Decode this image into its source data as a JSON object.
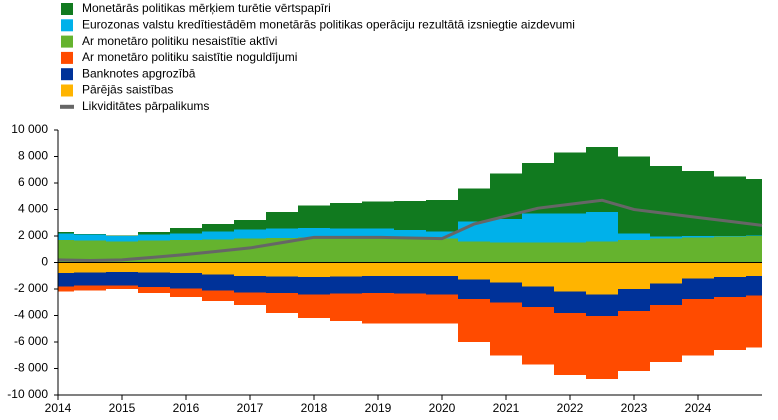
{
  "chart_data": {
    "type": "stacked_bar",
    "x": [
      2014,
      2014.5,
      2015,
      2015.5,
      2016,
      2016.5,
      2017,
      2017.5,
      2018,
      2018.5,
      2019,
      2019.5,
      2020,
      2020.5,
      2021,
      2021.5,
      2022,
      2022.5,
      2023,
      2023.5,
      2024,
      2024.5,
      2025
    ],
    "xlim": [
      2014,
      2025
    ],
    "xticks": [
      2014,
      2015,
      2016,
      2017,
      2018,
      2019,
      2020,
      2021,
      2022,
      2023,
      2024
    ],
    "ylim": [
      -10000,
      10000
    ],
    "yticks": [
      {
        "value": -10000,
        "label": "-10 000"
      },
      {
        "value": -8000,
        "label": "-8 000"
      },
      {
        "value": -6000,
        "label": "-6 000"
      },
      {
        "value": -4000,
        "label": "-4 000"
      },
      {
        "value": -2000,
        "label": "-2 000"
      },
      0,
      {
        "value": 2000,
        "label": "2 000"
      },
      {
        "value": 4000,
        "label": "4 000"
      },
      {
        "value": 6000,
        "label": "6 000"
      },
      {
        "value": 8000,
        "label": "8 000"
      },
      {
        "value": 10000,
        "label": "10 000"
      }
    ],
    "series": [
      {
        "name": "Monetārās politikas mērķiem turētie vērtspapīri",
        "color": "#117a1f",
        "values": [
          100,
          50,
          50,
          200,
          400,
          550,
          700,
          1250,
          1700,
          1950,
          2050,
          2200,
          2350,
          2500,
          3400,
          3800,
          4600,
          4900,
          5800,
          5350,
          4900,
          4500,
          4270
        ]
      },
      {
        "name": "Eurozonas valstu kredītiestādēm monetārās politikas operāciju rezultātā izsniegtie aizdevumi",
        "color": "#00b1ea",
        "values": [
          500,
          450,
          400,
          450,
          500,
          600,
          700,
          700,
          700,
          650,
          650,
          600,
          550,
          1500,
          1800,
          2200,
          2200,
          2200,
          500,
          150,
          100,
          50,
          30
        ]
      },
      {
        "name": "Ar monetāro politiku nesaistītie aktīvi",
        "color": "#65b32e",
        "values": [
          1700,
          1650,
          1600,
          1650,
          1700,
          1750,
          1800,
          1850,
          1900,
          1900,
          1900,
          1850,
          1800,
          1600,
          1500,
          1500,
          1500,
          1600,
          1700,
          1800,
          1900,
          1950,
          2000
        ]
      },
      {
        "name": "Ar monetāro politiku saistītie noguldījumi",
        "color": "#ff4b00",
        "values": [
          -400,
          -350,
          -250,
          -450,
          -650,
          -800,
          -950,
          -1500,
          -1800,
          -2050,
          -2300,
          -2250,
          -2200,
          -3250,
          -4000,
          -4350,
          -4700,
          -4750,
          -4550,
          -4300,
          -4250,
          -4000,
          -3900
        ]
      },
      {
        "name": "Banknotes apgrozībā",
        "color": "#003299",
        "values": [
          -1000,
          -1000,
          -1050,
          -1100,
          -1150,
          -1200,
          -1250,
          -1250,
          -1300,
          -1300,
          -1300,
          -1350,
          -1400,
          -1450,
          -1500,
          -1550,
          -1600,
          -1650,
          -1650,
          -1600,
          -1550,
          -1500,
          -1500
        ]
      },
      {
        "name": "Pārējās saistības",
        "color": "#ffb400",
        "values": [
          -800,
          -750,
          -700,
          -750,
          -800,
          -900,
          -1000,
          -1050,
          -1100,
          -1050,
          -1000,
          -1000,
          -1000,
          -1300,
          -1500,
          -1800,
          -2200,
          -2400,
          -2000,
          -1600,
          -1200,
          -1100,
          -1000
        ]
      },
      {
        "name": "Likviditātes pārpalikums",
        "color": "#666666",
        "type": "line",
        "values": [
          200,
          150,
          200,
          400,
          600,
          850,
          1100,
          1500,
          1900,
          1900,
          1900,
          1850,
          1800,
          2900,
          3500,
          4100,
          4400,
          4700,
          4000,
          3700,
          3400,
          3100,
          2800
        ]
      }
    ]
  }
}
